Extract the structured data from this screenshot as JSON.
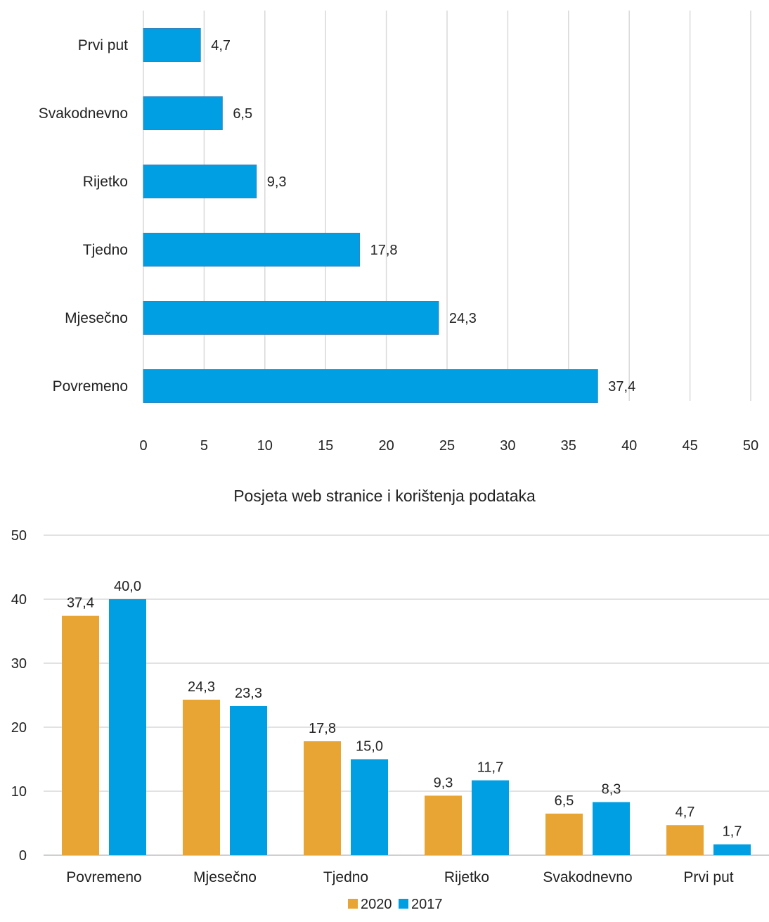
{
  "chart_data": [
    {
      "type": "bar",
      "orientation": "horizontal",
      "categories": [
        "Povremeno",
        "Mjesečno",
        "Tjedno",
        "Rijetko",
        "Svakodnevno",
        "Prvi put"
      ],
      "values": [
        37.4,
        24.3,
        17.8,
        9.3,
        6.5,
        4.7
      ],
      "value_labels": [
        "37,4",
        "24,3",
        "17,8",
        "9,3",
        "6,5",
        "4,7"
      ],
      "xlim": [
        0,
        50
      ],
      "x_ticks": [
        "0",
        "5",
        "10",
        "15",
        "20",
        "25",
        "30",
        "35",
        "40",
        "45",
        "50"
      ],
      "grid": "vertical",
      "title": "",
      "xlabel": "",
      "ylabel": "",
      "color": "#009fe3"
    },
    {
      "type": "bar",
      "orientation": "vertical",
      "title": "Posjeta web stranice i korištenja podataka",
      "categories": [
        "Povremeno",
        "Mjesečno",
        "Tjedno",
        "Rijetko",
        "Svakodnevno",
        "Prvi put"
      ],
      "series": [
        {
          "name": "2020",
          "values": [
            37.4,
            24.3,
            17.8,
            9.3,
            6.5,
            4.7
          ],
          "labels": [
            "37,4",
            "24,3",
            "17,8",
            "9,3",
            "6,5",
            "4,7"
          ],
          "color": "#e8a534"
        },
        {
          "name": "2017",
          "values": [
            40.0,
            23.3,
            15.0,
            11.7,
            8.3,
            1.7
          ],
          "labels": [
            "40,0",
            "23,3",
            "15,0",
            "11,7",
            "8,3",
            "1,7"
          ],
          "color": "#009fe3"
        }
      ],
      "ylim": [
        0,
        50
      ],
      "y_ticks": [
        "0",
        "10",
        "20",
        "30",
        "40",
        "50"
      ],
      "grid": "horizontal",
      "legend": "bottom-center",
      "xlabel": "",
      "ylabel": ""
    }
  ]
}
